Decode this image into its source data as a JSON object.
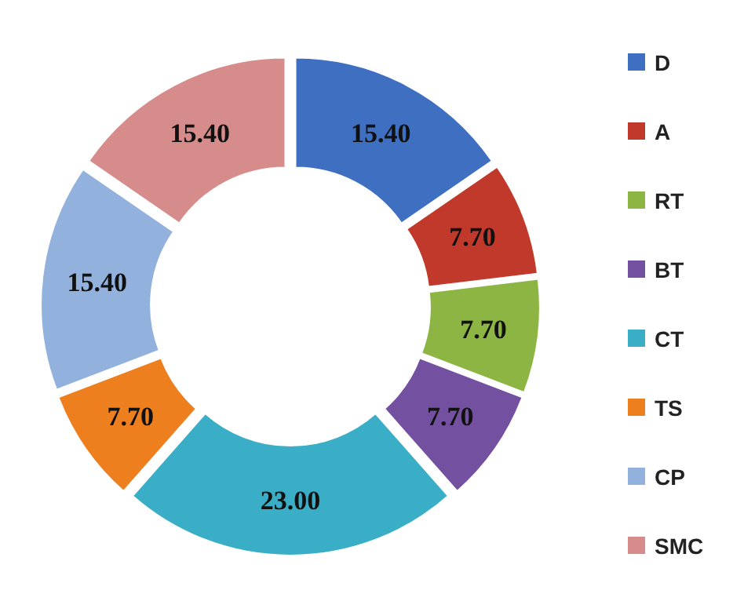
{
  "chart_data": {
    "type": "donut",
    "categories": [
      "D",
      "A",
      "RT",
      "BT",
      "CT",
      "TS",
      "CP",
      "SMC"
    ],
    "values": [
      15.4,
      7.7,
      7.7,
      7.7,
      23.0,
      7.7,
      15.4,
      15.4
    ],
    "value_labels": [
      "15.40",
      "7.70",
      "7.70",
      "7.70",
      "23.00",
      "7.70",
      "15.40",
      "15.40"
    ],
    "colors": [
      "#3f6fc0",
      "#c0392b",
      "#8db543",
      "#7451a0",
      "#3aaec6",
      "#ee7f1e",
      "#92b1dc",
      "#d78c8c"
    ],
    "legend": "right"
  }
}
